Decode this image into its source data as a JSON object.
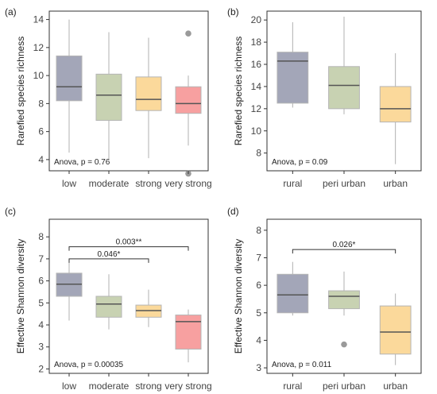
{
  "chart_data": [
    {
      "type": "boxplot",
      "panel_label": "(a)",
      "ylabel": "Rarefied species richness",
      "ylim": [
        3.2,
        14.6
      ],
      "yticks": [
        4,
        6,
        8,
        10,
        12,
        14
      ],
      "categories": [
        "low",
        "moderate",
        "strong",
        "very strong"
      ],
      "colors": [
        "#a3a6b8",
        "#c8d2b2",
        "#fbd99b",
        "#f7a0a0"
      ],
      "boxes": [
        {
          "category": "low",
          "whisker_low": 4.5,
          "q1": 8.2,
          "median": 9.2,
          "q3": 11.4,
          "whisker_high": 14.0,
          "outliers": []
        },
        {
          "category": "moderate",
          "whisker_low": 4.0,
          "q1": 6.8,
          "median": 8.6,
          "q3": 10.1,
          "whisker_high": 13.1,
          "outliers": []
        },
        {
          "category": "strong",
          "whisker_low": 4.1,
          "q1": 7.5,
          "median": 8.3,
          "q3": 9.9,
          "whisker_high": 12.7,
          "outliers": []
        },
        {
          "category": "very strong",
          "whisker_low": 5.0,
          "q1": 7.3,
          "median": 8.0,
          "q3": 9.2,
          "whisker_high": 10.0,
          "outliers": [
            13.0,
            3.0
          ]
        }
      ],
      "annotation": "Anova, p = 0.76",
      "brackets": []
    },
    {
      "type": "boxplot",
      "panel_label": "(b)",
      "ylabel": "Rarefied species richness",
      "ylim": [
        6.4,
        20.8
      ],
      "yticks": [
        8,
        10,
        12,
        14,
        16,
        18,
        20
      ],
      "categories": [
        "rural",
        "peri urban",
        "urban"
      ],
      "colors": [
        "#a3a6b8",
        "#c8d2b2",
        "#fbd99b"
      ],
      "boxes": [
        {
          "category": "rural",
          "whisker_low": 12.1,
          "q1": 12.5,
          "median": 16.3,
          "q3": 17.1,
          "whisker_high": 19.8,
          "outliers": []
        },
        {
          "category": "peri urban",
          "whisker_low": 11.5,
          "q1": 12.0,
          "median": 14.1,
          "q3": 15.8,
          "whisker_high": 20.3,
          "outliers": []
        },
        {
          "category": "urban",
          "whisker_low": 7.0,
          "q1": 10.8,
          "median": 12.0,
          "q3": 14.0,
          "whisker_high": 17.0,
          "outliers": []
        }
      ],
      "annotation": "Anova, p = 0.09",
      "brackets": []
    },
    {
      "type": "boxplot",
      "panel_label": "(c)",
      "ylabel": "Effective Shannon diversity",
      "ylim": [
        1.8,
        8.8
      ],
      "yticks": [
        2,
        3,
        4,
        5,
        6,
        7,
        8
      ],
      "categories": [
        "low",
        "moderate",
        "strong",
        "very strong"
      ],
      "colors": [
        "#a3a6b8",
        "#c8d2b2",
        "#fbd99b",
        "#f7a0a0"
      ],
      "boxes": [
        {
          "category": "low",
          "whisker_low": 4.2,
          "q1": 5.3,
          "median": 5.85,
          "q3": 6.35,
          "whisker_high": 6.9,
          "outliers": []
        },
        {
          "category": "moderate",
          "whisker_low": 3.8,
          "q1": 4.35,
          "median": 4.95,
          "q3": 5.3,
          "whisker_high": 6.3,
          "outliers": []
        },
        {
          "category": "strong",
          "whisker_low": 3.9,
          "q1": 4.35,
          "median": 4.65,
          "q3": 4.9,
          "whisker_high": 5.6,
          "outliers": []
        },
        {
          "category": "very strong",
          "whisker_low": 2.3,
          "q1": 2.9,
          "median": 4.15,
          "q3": 4.45,
          "whisker_high": 4.7,
          "outliers": []
        }
      ],
      "annotation": "Anova, p = 0.00035",
      "brackets": [
        {
          "from": "low",
          "to": "very strong",
          "label": "0.003**",
          "y": 7.55
        },
        {
          "from": "low",
          "to": "strong",
          "label": "0.046*",
          "y": 7.0
        }
      ]
    },
    {
      "type": "boxplot",
      "panel_label": "(d)",
      "ylabel": "Effective Shannon diversity",
      "ylim": [
        2.8,
        8.4
      ],
      "yticks": [
        3,
        4,
        5,
        6,
        7,
        8
      ],
      "categories": [
        "rural",
        "peri urban",
        "urban"
      ],
      "colors": [
        "#a3a6b8",
        "#c8d2b2",
        "#fbd99b"
      ],
      "boxes": [
        {
          "category": "rural",
          "whisker_low": 4.9,
          "q1": 5.0,
          "median": 5.65,
          "q3": 6.4,
          "whisker_high": 6.85,
          "outliers": []
        },
        {
          "category": "peri urban",
          "whisker_low": 4.9,
          "q1": 5.15,
          "median": 5.6,
          "q3": 5.8,
          "whisker_high": 6.5,
          "outliers": [
            3.85
          ]
        },
        {
          "category": "urban",
          "whisker_low": 3.1,
          "q1": 3.5,
          "median": 4.3,
          "q3": 5.25,
          "whisker_high": 5.7,
          "outliers": []
        }
      ],
      "annotation": "Anova, p = 0.011",
      "brackets": [
        {
          "from": "rural",
          "to": "urban",
          "label": "0.026*",
          "y": 7.3
        }
      ]
    }
  ]
}
